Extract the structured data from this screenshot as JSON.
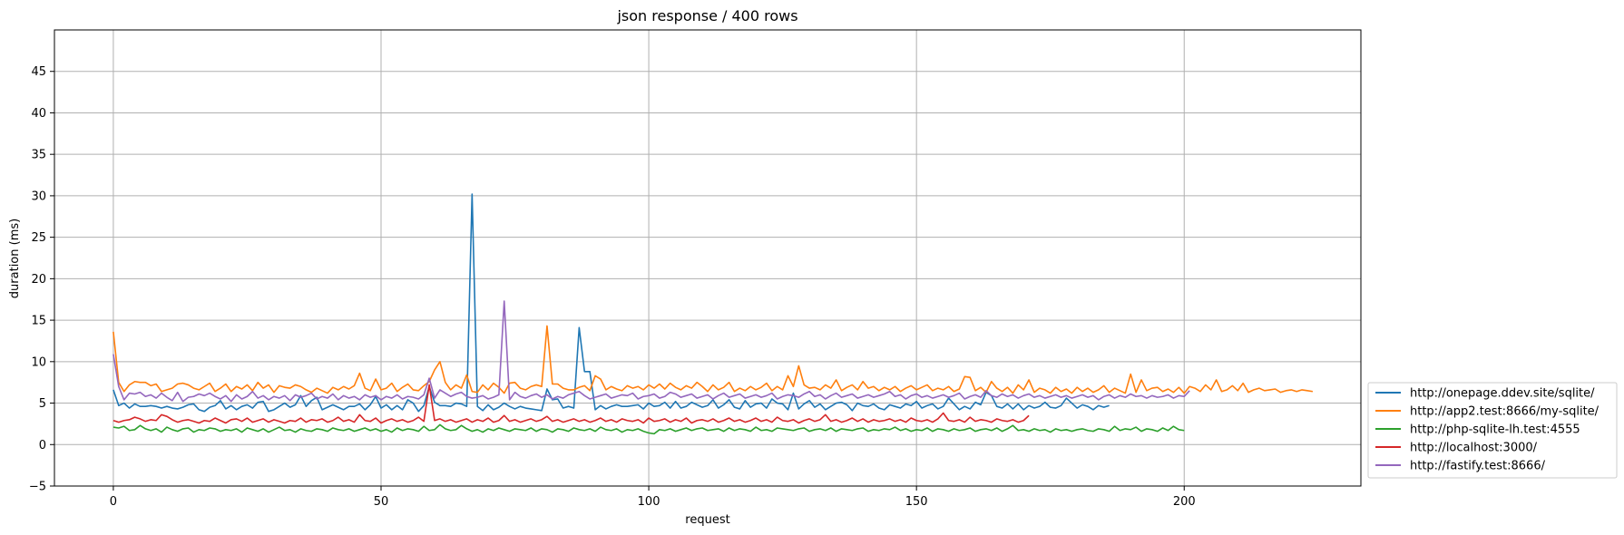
{
  "chart_data": {
    "type": "line",
    "title": "json response / 400 rows",
    "xlabel": "request",
    "ylabel": "duration (ms)",
    "xlim": [
      -11,
      233
    ],
    "ylim": [
      -5,
      50
    ],
    "xticks": [
      0,
      50,
      100,
      150,
      200
    ],
    "yticks": [
      -5,
      0,
      5,
      10,
      15,
      20,
      25,
      30,
      35,
      40,
      45
    ],
    "grid": true,
    "legend_position": "lower-right-outside",
    "series": [
      {
        "name": "http://onepage.ddev.site/sqlite/",
        "color": "#1f77b4",
        "values": [
          6.6,
          4.7,
          5.0,
          4.4,
          4.9,
          4.6,
          4.6,
          4.7,
          4.6,
          4.4,
          4.6,
          4.4,
          4.3,
          4.5,
          4.8,
          4.9,
          4.2,
          4.0,
          4.5,
          4.7,
          5.3,
          4.3,
          4.7,
          4.2,
          4.6,
          4.8,
          4.4,
          5.1,
          5.2,
          4.0,
          4.2,
          4.6,
          5.0,
          4.5,
          4.8,
          5.9,
          4.6,
          5.3,
          5.7,
          4.2,
          4.5,
          4.8,
          4.5,
          4.2,
          4.6,
          4.6,
          4.9,
          4.2,
          4.8,
          5.8,
          4.4,
          4.8,
          4.2,
          4.7,
          4.2,
          5.4,
          5.0,
          4.0,
          4.7,
          7.0,
          5.1,
          4.7,
          4.7,
          4.6,
          5.0,
          4.9,
          4.6,
          30.2,
          4.6,
          4.1,
          4.8,
          4.2,
          4.5,
          5.0,
          4.6,
          4.3,
          4.6,
          4.4,
          4.3,
          4.2,
          4.1,
          6.7,
          5.4,
          5.5,
          4.4,
          4.6,
          4.4,
          14.1,
          8.8,
          8.8,
          4.2,
          4.7,
          4.3,
          4.6,
          4.8,
          4.6,
          4.6,
          4.7,
          4.8,
          4.3,
          5.0,
          4.6,
          4.7,
          5.1,
          4.4,
          5.2,
          4.4,
          4.6,
          5.1,
          4.8,
          4.5,
          4.7,
          5.4,
          4.4,
          4.8,
          5.4,
          4.5,
          4.3,
          5.3,
          4.5,
          4.9,
          5.0,
          4.4,
          5.5,
          5.0,
          4.9,
          4.2,
          6.2,
          4.3,
          4.9,
          5.3,
          4.5,
          4.9,
          4.2,
          4.6,
          5.0,
          5.1,
          4.8,
          4.1,
          5.0,
          4.7,
          4.6,
          4.9,
          4.4,
          4.2,
          4.8,
          4.6,
          4.4,
          4.9,
          4.7,
          5.2,
          4.4,
          4.7,
          4.9,
          4.3,
          4.6,
          5.6,
          4.9,
          4.2,
          4.6,
          4.3,
          5.1,
          4.8,
          6.3,
          5.9,
          4.6,
          4.4,
          4.9,
          4.3,
          4.9,
          4.2,
          4.7,
          4.4,
          4.6,
          5.1,
          4.5,
          4.4,
          4.7,
          5.6,
          5.0,
          4.4,
          4.8,
          4.6,
          4.2,
          4.7,
          4.5,
          4.7
        ]
      },
      {
        "name": "http://app2.test:8666/my-sqlite/",
        "color": "#ff7f0e",
        "values": [
          13.6,
          7.5,
          6.4,
          7.2,
          7.6,
          7.5,
          7.5,
          7.1,
          7.3,
          6.4,
          6.6,
          6.8,
          7.3,
          7.4,
          7.2,
          6.8,
          6.6,
          7.0,
          7.4,
          6.4,
          6.8,
          7.3,
          6.4,
          7.0,
          6.7,
          7.2,
          6.5,
          7.5,
          6.8,
          7.2,
          6.3,
          7.1,
          6.9,
          6.8,
          7.2,
          7.0,
          6.6,
          6.3,
          6.8,
          6.5,
          6.2,
          6.9,
          6.6,
          7.0,
          6.7,
          7.1,
          8.6,
          6.8,
          6.5,
          7.9,
          6.6,
          6.8,
          7.4,
          6.4,
          6.9,
          7.3,
          6.6,
          6.5,
          7.1,
          7.6,
          9.0,
          10.0,
          7.5,
          6.6,
          7.2,
          6.8,
          8.4,
          6.4,
          6.3,
          7.2,
          6.6,
          7.4,
          6.9,
          6.2,
          7.4,
          7.5,
          6.8,
          6.6,
          7.0,
          7.2,
          7.0,
          14.3,
          7.3,
          7.3,
          6.8,
          6.6,
          6.6,
          6.9,
          7.1,
          6.5,
          8.3,
          7.9,
          6.6,
          7.0,
          6.7,
          6.5,
          7.1,
          6.8,
          7.0,
          6.6,
          7.2,
          6.8,
          7.3,
          6.7,
          7.4,
          6.9,
          6.6,
          7.1,
          6.8,
          7.5,
          7.0,
          6.4,
          7.2,
          6.6,
          6.9,
          7.5,
          6.4,
          6.8,
          6.5,
          7.0,
          6.6,
          6.9,
          7.4,
          6.5,
          7.0,
          6.6,
          8.3,
          7.0,
          9.5,
          7.2,
          6.8,
          6.9,
          6.6,
          7.2,
          6.8,
          7.8,
          6.5,
          6.9,
          7.2,
          6.6,
          7.6,
          6.8,
          7.0,
          6.5,
          6.9,
          6.6,
          7.0,
          6.4,
          6.8,
          7.1,
          6.6,
          6.9,
          7.2,
          6.5,
          6.8,
          6.6,
          7.0,
          6.4,
          6.7,
          8.2,
          8.1,
          6.5,
          6.9,
          6.3,
          7.6,
          6.8,
          6.4,
          6.9,
          6.2,
          7.2,
          6.6,
          7.8,
          6.3,
          6.8,
          6.6,
          6.2,
          6.9,
          6.4,
          6.7,
          6.2,
          6.9,
          6.4,
          6.8,
          6.3,
          6.6,
          7.1,
          6.3,
          6.8,
          6.5,
          6.2,
          8.5,
          6.3,
          7.8,
          6.5,
          6.8,
          6.9,
          6.4,
          6.7,
          6.3,
          6.9,
          6.2,
          7.0,
          6.8,
          6.4,
          7.2,
          6.6,
          7.8,
          6.4,
          6.6,
          7.1,
          6.5,
          7.4,
          6.3,
          6.6,
          6.8,
          6.5,
          6.6,
          6.7,
          6.3,
          6.5,
          6.6,
          6.4,
          6.6,
          6.5,
          6.4
        ]
      },
      {
        "name": "http://php-sqlite-lh.test:4555",
        "color": "#2ca02c",
        "values": [
          2.1,
          2.0,
          2.2,
          1.7,
          1.8,
          2.3,
          1.9,
          1.7,
          1.9,
          1.5,
          2.1,
          1.8,
          1.6,
          1.9,
          2.0,
          1.5,
          1.8,
          1.7,
          2.0,
          1.9,
          1.6,
          1.8,
          1.7,
          1.9,
          1.5,
          2.0,
          1.8,
          1.6,
          1.9,
          1.5,
          1.8,
          2.1,
          1.7,
          1.8,
          1.5,
          1.9,
          1.7,
          1.6,
          1.9,
          1.8,
          1.6,
          2.0,
          1.8,
          1.7,
          1.9,
          1.6,
          1.8,
          2.0,
          1.7,
          1.9,
          1.6,
          1.8,
          1.5,
          2.0,
          1.7,
          1.9,
          1.8,
          1.6,
          2.2,
          1.7,
          1.8,
          2.4,
          1.9,
          1.7,
          1.8,
          2.3,
          1.9,
          1.6,
          1.8,
          1.5,
          1.9,
          1.7,
          2.0,
          1.8,
          1.6,
          1.9,
          1.8,
          1.7,
          2.0,
          1.6,
          1.9,
          1.8,
          1.5,
          1.9,
          1.8,
          1.6,
          2.0,
          1.8,
          1.7,
          1.9,
          1.6,
          2.1,
          1.8,
          1.7,
          1.9,
          1.5,
          1.8,
          1.7,
          1.9,
          1.6,
          1.4,
          1.3,
          1.8,
          1.7,
          1.9,
          1.6,
          1.8,
          2.0,
          1.7,
          1.9,
          2.0,
          1.7,
          1.8,
          1.9,
          1.6,
          2.0,
          1.7,
          1.9,
          1.8,
          1.6,
          2.1,
          1.7,
          1.8,
          1.6,
          2.0,
          1.9,
          1.8,
          1.7,
          1.9,
          2.0,
          1.6,
          1.8,
          1.9,
          1.7,
          2.0,
          1.6,
          1.9,
          1.8,
          1.7,
          1.9,
          2.0,
          1.6,
          1.8,
          1.7,
          1.9,
          1.8,
          2.1,
          1.7,
          1.9,
          1.6,
          1.8,
          1.7,
          2.0,
          1.6,
          1.9,
          1.8,
          1.6,
          1.9,
          1.7,
          1.8,
          2.0,
          1.6,
          1.8,
          1.9,
          1.7,
          2.0,
          1.6,
          1.9,
          2.3,
          1.7,
          1.8,
          1.6,
          1.9,
          1.7,
          1.8,
          1.5,
          1.9,
          1.7,
          1.8,
          1.6,
          1.8,
          1.9,
          1.7,
          1.6,
          1.9,
          1.8,
          1.6,
          2.2,
          1.7,
          1.9,
          1.8,
          2.1,
          1.6,
          1.9,
          1.8,
          1.6,
          2.0,
          1.7,
          2.2,
          1.8,
          1.7
        ]
      },
      {
        "name": "http://localhost:3000/",
        "color": "#d62728",
        "values": [
          2.9,
          2.7,
          2.9,
          3.0,
          3.3,
          3.1,
          2.8,
          3.0,
          2.9,
          3.6,
          3.4,
          3.0,
          2.7,
          2.9,
          3.0,
          2.8,
          2.6,
          2.9,
          2.8,
          3.2,
          2.9,
          2.6,
          3.0,
          3.1,
          2.8,
          3.2,
          2.7,
          2.9,
          3.1,
          2.7,
          3.0,
          2.8,
          2.6,
          2.9,
          2.8,
          3.2,
          2.7,
          3.0,
          2.9,
          3.1,
          2.7,
          2.9,
          3.3,
          2.8,
          3.0,
          2.7,
          3.6,
          2.9,
          2.8,
          3.2,
          2.6,
          2.9,
          3.1,
          2.8,
          3.0,
          2.7,
          2.9,
          3.3,
          2.8,
          7.2,
          2.9,
          3.1,
          2.8,
          3.0,
          2.7,
          2.9,
          3.1,
          2.7,
          3.0,
          2.8,
          3.2,
          2.7,
          2.9,
          3.5,
          2.8,
          3.0,
          2.7,
          2.9,
          3.1,
          2.8,
          3.0,
          3.4,
          2.8,
          3.0,
          2.7,
          2.9,
          3.1,
          2.8,
          3.0,
          2.7,
          2.9,
          3.2,
          2.8,
          3.0,
          2.7,
          3.1,
          2.9,
          2.8,
          3.0,
          2.6,
          3.2,
          2.8,
          2.9,
          3.1,
          2.7,
          3.0,
          2.8,
          3.2,
          2.6,
          2.9,
          3.0,
          2.8,
          3.1,
          2.7,
          2.9,
          3.2,
          2.8,
          3.0,
          2.7,
          2.9,
          3.2,
          2.8,
          3.0,
          2.7,
          3.3,
          2.9,
          2.8,
          3.0,
          2.6,
          2.9,
          3.1,
          2.8,
          3.0,
          3.6,
          2.8,
          3.0,
          2.7,
          2.9,
          3.2,
          2.8,
          3.1,
          2.7,
          3.0,
          2.8,
          2.9,
          3.1,
          2.8,
          3.0,
          2.7,
          3.2,
          2.9,
          2.8,
          3.0,
          2.7,
          3.1,
          3.8,
          2.9,
          2.8,
          3.0,
          2.7,
          3.3,
          2.8,
          3.0,
          2.9,
          2.7,
          3.1,
          2.9,
          2.8,
          3.0,
          2.7,
          2.9,
          3.5
        ]
      },
      {
        "name": "http://fastify.test:8666/",
        "color": "#9467bd",
        "values": [
          10.9,
          7.0,
          5.4,
          6.2,
          6.1,
          6.3,
          5.8,
          6.0,
          5.6,
          6.2,
          5.7,
          5.3,
          6.3,
          5.2,
          5.7,
          5.8,
          6.1,
          5.9,
          6.2,
          5.8,
          5.5,
          5.9,
          5.2,
          6.0,
          5.5,
          5.8,
          6.4,
          5.6,
          5.9,
          5.4,
          5.8,
          5.6,
          5.9,
          5.3,
          6.0,
          5.7,
          5.9,
          6.2,
          5.5,
          5.8,
          5.6,
          6.1,
          5.4,
          5.9,
          5.6,
          5.8,
          5.4,
          6.0,
          5.7,
          5.9,
          5.4,
          5.8,
          5.6,
          6.0,
          5.5,
          5.8,
          5.7,
          5.5,
          6.0,
          8.0,
          5.6,
          6.6,
          6.2,
          5.8,
          6.1,
          6.3,
          5.8,
          5.6,
          5.7,
          5.9,
          5.5,
          5.7,
          6.0,
          17.3,
          5.4,
          6.3,
          5.8,
          5.6,
          5.9,
          6.1,
          5.7,
          6.0,
          5.5,
          5.8,
          5.6,
          6.0,
          6.2,
          6.4,
          5.9,
          5.5,
          5.7,
          5.9,
          6.1,
          5.6,
          5.8,
          6.0,
          5.9,
          6.2,
          5.5,
          5.8,
          5.9,
          6.1,
          5.6,
          5.8,
          6.3,
          6.1,
          5.7,
          5.9,
          6.1,
          5.6,
          5.8,
          6.0,
          5.5,
          5.9,
          6.2,
          5.7,
          5.9,
          6.1,
          5.6,
          5.8,
          6.0,
          5.7,
          5.9,
          6.2,
          5.5,
          5.8,
          6.0,
          5.9,
          5.7,
          6.1,
          6.4,
          5.8,
          6.0,
          5.5,
          5.9,
          6.2,
          5.7,
          5.9,
          6.1,
          5.6,
          5.8,
          6.0,
          5.7,
          5.9,
          6.1,
          6.4,
          5.8,
          6.0,
          5.5,
          5.9,
          6.1,
          5.7,
          5.9,
          5.6,
          5.8,
          6.0,
          5.7,
          5.9,
          6.2,
          5.5,
          5.8,
          6.0,
          5.7,
          6.5,
          5.9,
          5.7,
          6.1,
          5.8,
          6.0,
          5.6,
          5.9,
          6.1,
          5.7,
          5.9,
          5.6,
          5.8,
          6.0,
          5.7,
          5.9,
          5.6,
          5.8,
          6.0,
          5.7,
          5.9,
          5.4,
          5.8,
          6.0,
          5.6,
          5.9,
          5.7,
          6.1,
          5.8,
          5.9,
          5.6,
          5.9,
          5.7,
          5.8,
          6.0,
          5.6,
          5.9,
          5.8,
          6.5
        ]
      }
    ]
  }
}
